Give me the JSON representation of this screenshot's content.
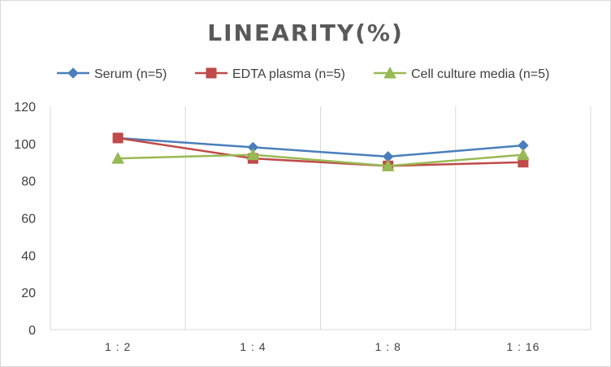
{
  "chart_data": {
    "type": "line",
    "title": "LINEARITY(%)",
    "xlabel": "",
    "ylabel": "",
    "categories": [
      "1:2",
      "1:4",
      "1:8",
      "1:16"
    ],
    "ylim": [
      0,
      120
    ],
    "yticks": [
      0,
      20,
      40,
      60,
      80,
      100,
      120
    ],
    "grid": "vertical",
    "legend_position": "top",
    "series": [
      {
        "name": "Serum (n=5)",
        "values": [
          103,
          98,
          93,
          99
        ],
        "color": "#4a7ebb",
        "marker": "diamond"
      },
      {
        "name": "EDTA plasma (n=5)",
        "values": [
          103,
          92,
          88,
          90
        ],
        "color": "#be4b48",
        "marker": "square"
      },
      {
        "name": "Cell culture media (n=5)",
        "values": [
          92,
          94,
          88,
          94
        ],
        "color": "#98b954",
        "marker": "triangle"
      }
    ]
  }
}
